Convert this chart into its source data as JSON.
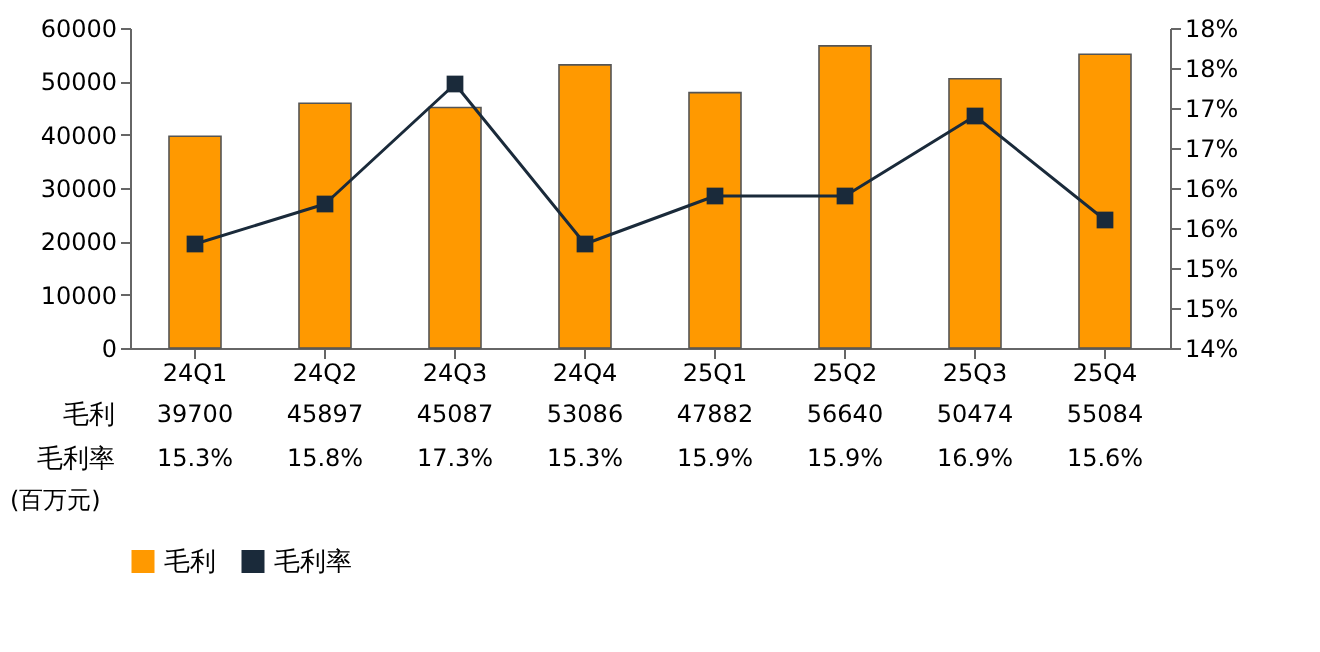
{
  "chart_data": {
    "type": "bar",
    "categories": [
      "24Q1",
      "24Q2",
      "24Q3",
      "24Q4",
      "25Q1",
      "25Q2",
      "25Q3",
      "25Q4"
    ],
    "series": [
      {
        "name": "毛利",
        "color": "#ff9900",
        "values": [
          39700,
          45897,
          45087,
          53086,
          47882,
          56640,
          50474,
          55084
        ],
        "value_labels": [
          "39700",
          "45897",
          "45087",
          "53086",
          "47882",
          "56640",
          "50474",
          "55084"
        ]
      },
      {
        "name": "毛利率",
        "type": "line",
        "axis": "y2",
        "color": "#1a2a3a",
        "marker": "square",
        "values": [
          15.3,
          15.8,
          17.3,
          15.3,
          15.9,
          15.9,
          16.9,
          15.6
        ],
        "value_labels": [
          "15.3%",
          "15.8%",
          "17.3%",
          "15.3%",
          "15.9%",
          "15.9%",
          "16.9%",
          "15.6%"
        ]
      }
    ],
    "ylim": [
      0,
      60000
    ],
    "yticks": [
      0,
      10000,
      20000,
      30000,
      40000,
      50000,
      60000
    ],
    "y2lim": [
      14,
      18
    ],
    "y2ticks": [
      {
        "value": 14,
        "label": "14%"
      },
      {
        "value": 14.5,
        "label": "15%"
      },
      {
        "value": 15,
        "label": "15%"
      },
      {
        "value": 15.5,
        "label": "16%"
      },
      {
        "value": 16,
        "label": "16%"
      },
      {
        "value": 16.5,
        "label": "17%"
      },
      {
        "value": 17,
        "label": "17%"
      },
      {
        "value": 17.5,
        "label": "18%"
      },
      {
        "value": 18,
        "label": "18%"
      }
    ],
    "grid": false,
    "legend": "bottom",
    "annotations": [
      "(百万元)"
    ]
  }
}
